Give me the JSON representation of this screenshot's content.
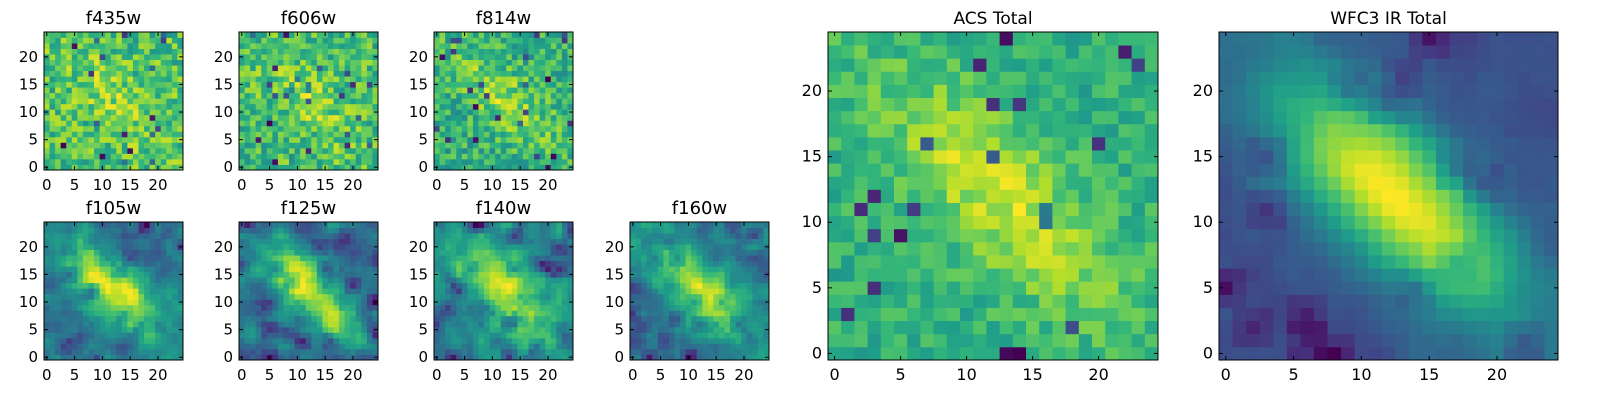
{
  "figure": {
    "background": "#ffffff",
    "colormap": "viridis",
    "colormap_stops": [
      "#440154",
      "#482878",
      "#3e4a89",
      "#31688e",
      "#26828e",
      "#1f9e89",
      "#35b779",
      "#6ece58",
      "#b5de2b",
      "#fde725"
    ]
  },
  "chart_data": [
    {
      "type": "heatmap",
      "title": "f435w",
      "grid_size": 25,
      "noise": 0.55,
      "smooth": 0,
      "seed": 11,
      "blob_strength": 0.35,
      "xlim": [
        -0.5,
        24.5
      ],
      "ylim": [
        -0.5,
        24.5
      ],
      "xticks": [
        0,
        5,
        10,
        15,
        20
      ],
      "yticks": [
        0,
        5,
        10,
        15,
        20
      ],
      "xtick_labels": [
        "0",
        "5",
        "10",
        "15",
        "20"
      ],
      "ytick_labels": [
        "0",
        "5",
        "10",
        "15",
        "20"
      ]
    },
    {
      "type": "heatmap",
      "title": "f606w",
      "grid_size": 25,
      "noise": 0.55,
      "smooth": 0,
      "seed": 23,
      "blob_strength": 0.4,
      "xlim": [
        -0.5,
        24.5
      ],
      "ylim": [
        -0.5,
        24.5
      ],
      "xticks": [
        0,
        5,
        10,
        15,
        20
      ],
      "yticks": [
        0,
        5,
        10,
        15,
        20
      ],
      "xtick_labels": [
        "0",
        "5",
        "10",
        "15",
        "20"
      ],
      "ytick_labels": [
        "0",
        "5",
        "10",
        "15",
        "20"
      ]
    },
    {
      "type": "heatmap",
      "title": "f814w",
      "grid_size": 25,
      "noise": 0.5,
      "smooth": 0,
      "seed": 37,
      "blob_strength": 0.6,
      "xlim": [
        -0.5,
        24.5
      ],
      "ylim": [
        -0.5,
        24.5
      ],
      "xticks": [
        0,
        5,
        10,
        15,
        20
      ],
      "yticks": [
        0,
        5,
        10,
        15,
        20
      ],
      "xtick_labels": [
        "0",
        "5",
        "10",
        "15",
        "20"
      ],
      "ytick_labels": [
        "0",
        "5",
        "10",
        "15",
        "20"
      ]
    },
    {
      "type": "heatmap",
      "title": "f105w",
      "grid_size": 25,
      "noise": 0.45,
      "smooth": 1,
      "seed": 41,
      "blob_strength": 0.9,
      "xlim": [
        -0.5,
        24.5
      ],
      "ylim": [
        -0.5,
        24.5
      ],
      "xticks": [
        0,
        5,
        10,
        15,
        20
      ],
      "yticks": [
        0,
        5,
        10,
        15,
        20
      ],
      "xtick_labels": [
        "0",
        "5",
        "10",
        "15",
        "20"
      ],
      "ytick_labels": [
        "0",
        "5",
        "10",
        "15",
        "20"
      ]
    },
    {
      "type": "heatmap",
      "title": "f125w",
      "grid_size": 25,
      "noise": 0.45,
      "smooth": 1,
      "seed": 53,
      "blob_strength": 0.8,
      "xlim": [
        -0.5,
        24.5
      ],
      "ylim": [
        -0.5,
        24.5
      ],
      "xticks": [
        0,
        5,
        10,
        15,
        20
      ],
      "yticks": [
        0,
        5,
        10,
        15,
        20
      ],
      "xtick_labels": [
        "0",
        "5",
        "10",
        "15",
        "20"
      ],
      "ytick_labels": [
        "0",
        "5",
        "10",
        "15",
        "20"
      ]
    },
    {
      "type": "heatmap",
      "title": "f140w",
      "grid_size": 25,
      "noise": 0.45,
      "smooth": 1,
      "seed": 67,
      "blob_strength": 0.8,
      "xlim": [
        -0.5,
        24.5
      ],
      "ylim": [
        -0.5,
        24.5
      ],
      "xticks": [
        0,
        5,
        10,
        15,
        20
      ],
      "yticks": [
        0,
        5,
        10,
        15,
        20
      ],
      "xtick_labels": [
        "0",
        "5",
        "10",
        "15",
        "20"
      ],
      "ytick_labels": [
        "0",
        "5",
        "10",
        "15",
        "20"
      ]
    },
    {
      "type": "heatmap",
      "title": "f160w",
      "grid_size": 25,
      "noise": 0.45,
      "smooth": 1,
      "seed": 79,
      "blob_strength": 0.85,
      "xlim": [
        -0.5,
        24.5
      ],
      "ylim": [
        -0.5,
        24.5
      ],
      "xticks": [
        0,
        5,
        10,
        15,
        20
      ],
      "yticks": [
        0,
        5,
        10,
        15,
        20
      ],
      "xtick_labels": [
        "0",
        "5",
        "10",
        "15",
        "20"
      ],
      "ytick_labels": [
        "0",
        "5",
        "10",
        "15",
        "20"
      ]
    },
    {
      "type": "heatmap",
      "title": "ACS Total",
      "grid_size": 25,
      "noise": 0.3,
      "smooth": 0,
      "seed": 97,
      "blob_strength": 0.8,
      "xlim": [
        -0.5,
        24.5
      ],
      "ylim": [
        -0.5,
        24.5
      ],
      "xticks": [
        0,
        5,
        10,
        15,
        20
      ],
      "yticks": [
        0,
        5,
        10,
        15,
        20
      ],
      "xtick_labels": [
        "0",
        "5",
        "10",
        "15",
        "20"
      ],
      "ytick_labels": [
        "0",
        "5",
        "10",
        "15",
        "20"
      ]
    },
    {
      "type": "heatmap",
      "title": "WFC3 IR Total",
      "grid_size": 25,
      "noise": 0.18,
      "smooth": 1,
      "seed": 113,
      "blob_strength": 1.6,
      "xlim": [
        -0.5,
        24.5
      ],
      "ylim": [
        -0.5,
        24.5
      ],
      "xticks": [
        0,
        5,
        10,
        15,
        20
      ],
      "yticks": [
        0,
        5,
        10,
        15,
        20
      ],
      "xtick_labels": [
        "0",
        "5",
        "10",
        "15",
        "20"
      ],
      "ytick_labels": [
        "0",
        "5",
        "10",
        "15",
        "20"
      ]
    }
  ]
}
